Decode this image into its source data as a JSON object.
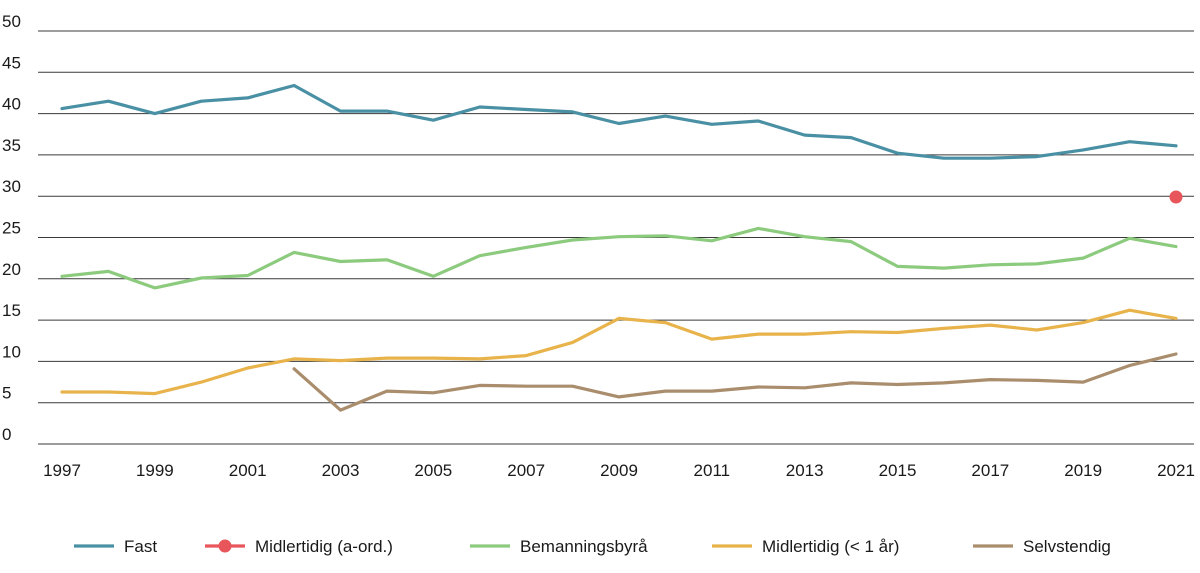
{
  "chart_data": {
    "type": "line",
    "title": "",
    "xlabel": "",
    "ylabel": "",
    "ylim": [
      0,
      50
    ],
    "xlim": [
      1997,
      2021
    ],
    "y_ticks": [
      0,
      5,
      10,
      15,
      20,
      25,
      30,
      35,
      40,
      45,
      50
    ],
    "x_ticks": [
      1997,
      1999,
      2001,
      2003,
      2005,
      2007,
      2009,
      2011,
      2013,
      2015,
      2017,
      2019,
      2021
    ],
    "grid": "horizontal",
    "legend_position": "bottom",
    "series": [
      {
        "name": "Fast",
        "color": "#4a90a4",
        "kind": "line",
        "x": [
          1997,
          1998,
          1999,
          2000,
          2001,
          2002,
          2003,
          2004,
          2005,
          2006,
          2007,
          2008,
          2009,
          2010,
          2011,
          2012,
          2013,
          2014,
          2015,
          2016,
          2017,
          2018,
          2019,
          2020,
          2021
        ],
        "values": [
          40.6,
          41.5,
          40.0,
          41.5,
          41.9,
          43.4,
          40.3,
          40.3,
          39.2,
          40.8,
          40.5,
          40.2,
          38.8,
          39.7,
          38.7,
          39.1,
          37.4,
          37.1,
          35.2,
          34.6,
          34.6,
          34.8,
          35.6,
          36.6,
          36.1
        ]
      },
      {
        "name": "Midlertidig (a-ord.)",
        "color": "#e8555a",
        "kind": "point",
        "x": [
          2021
        ],
        "values": [
          29.9
        ]
      },
      {
        "name": "Bemanningsbyrå",
        "color": "#8ccb7e",
        "kind": "line",
        "x": [
          1997,
          1998,
          1999,
          2000,
          2001,
          2002,
          2003,
          2004,
          2005,
          2006,
          2007,
          2008,
          2009,
          2010,
          2011,
          2012,
          2013,
          2014,
          2015,
          2016,
          2017,
          2018,
          2019,
          2020,
          2021
        ],
        "values": [
          20.3,
          20.9,
          18.9,
          20.1,
          20.4,
          23.2,
          22.1,
          22.3,
          20.3,
          22.8,
          23.8,
          24.7,
          25.1,
          25.2,
          24.6,
          26.1,
          25.1,
          24.5,
          21.5,
          21.3,
          21.7,
          21.8,
          22.5,
          24.9,
          23.9
        ]
      },
      {
        "name": "Midlertidig (< 1 år)",
        "color": "#e8b34a",
        "kind": "line",
        "x": [
          1997,
          1998,
          1999,
          2000,
          2001,
          2002,
          2003,
          2004,
          2005,
          2006,
          2007,
          2008,
          2009,
          2010,
          2011,
          2012,
          2013,
          2014,
          2015,
          2016,
          2017,
          2018,
          2019,
          2020,
          2021
        ],
        "values": [
          6.3,
          6.3,
          6.1,
          7.5,
          9.2,
          10.3,
          10.1,
          10.4,
          10.4,
          10.3,
          10.7,
          12.3,
          15.2,
          14.7,
          12.7,
          13.3,
          13.3,
          13.6,
          13.5,
          14.0,
          14.4,
          13.8,
          14.7,
          16.2,
          15.2
        ]
      },
      {
        "name": "Selvstendig",
        "color": "#a98d6c",
        "kind": "line",
        "x": [
          2002,
          2003,
          2004,
          2005,
          2006,
          2007,
          2008,
          2009,
          2010,
          2011,
          2012,
          2013,
          2014,
          2015,
          2016,
          2017,
          2018,
          2019,
          2020,
          2021
        ],
        "values": [
          9.1,
          4.1,
          6.4,
          6.2,
          7.1,
          7.0,
          7.0,
          5.7,
          6.4,
          6.4,
          6.9,
          6.8,
          7.4,
          7.2,
          7.4,
          7.8,
          7.7,
          7.5,
          9.5,
          10.9
        ]
      }
    ]
  }
}
